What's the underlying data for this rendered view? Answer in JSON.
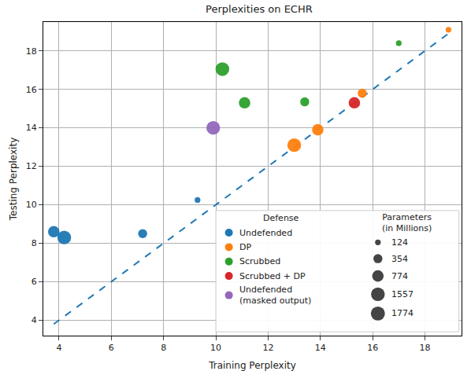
{
  "chart_data": {
    "type": "scatter",
    "title": "Perplexities on ECHR",
    "x_label": "Training Perplexity",
    "y_label": "Testing Perplexity",
    "xlim": [
      3.4,
      19.4
    ],
    "ylim": [
      3.2,
      19.5
    ],
    "xticks": [
      4,
      6,
      8,
      10,
      12,
      14,
      16,
      18
    ],
    "yticks": [
      4,
      6,
      8,
      10,
      12,
      14,
      16,
      18
    ],
    "grid": true,
    "legend": "lower right",
    "legend_title": "Defense",
    "series": [
      {
        "name": "Undefended",
        "color": "#1f77b4",
        "x": [
          3.8,
          4.2,
          7.2,
          9.3
        ],
        "y": [
          8.6,
          8.3,
          8.5,
          10.25
        ],
        "params": [
          774,
          1557,
          354,
          124
        ]
      },
      {
        "name": "DP",
        "color": "#ff7f0e",
        "x": [
          18.9,
          15.6,
          13.9,
          13.0
        ],
        "y": [
          19.1,
          15.8,
          13.9,
          13.1
        ],
        "params": [
          124,
          354,
          774,
          1557
        ]
      },
      {
        "name": "Scrubbed",
        "color": "#2ca02c",
        "x": [
          17.0,
          13.4,
          11.1,
          10.25
        ],
        "y": [
          18.4,
          15.35,
          15.3,
          17.05
        ],
        "params": [
          124,
          354,
          774,
          1557
        ]
      },
      {
        "name": "Scrubbed + DP",
        "color": "#d62728",
        "x": [
          15.3
        ],
        "y": [
          15.3
        ],
        "params": [
          774
        ]
      },
      {
        "name": "Undefended\n(masked output)",
        "color": "#9467bd",
        "x": [
          9.9
        ],
        "y": [
          14.0
        ],
        "params": [
          1557
        ]
      }
    ],
    "reference_line": {
      "x": [
        3.8,
        18.9
      ],
      "y": [
        3.8,
        18.9
      ],
      "color": "#1f77b4",
      "line_style": "dashed"
    },
    "size_legend": {
      "title": "Parameters\n(in Millions)",
      "values": [
        124,
        354,
        774,
        1557,
        1774
      ]
    }
  }
}
